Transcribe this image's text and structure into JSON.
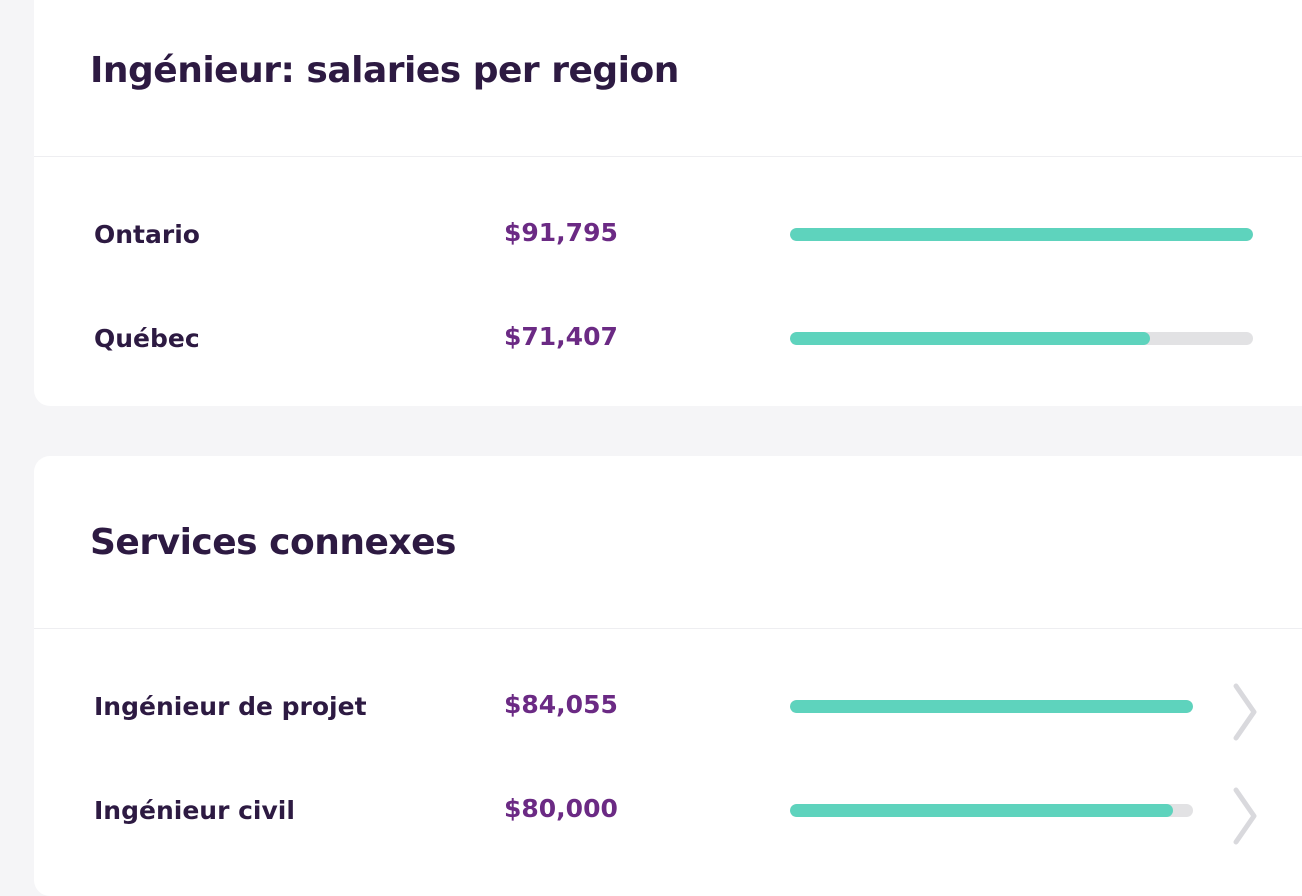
{
  "regions_section": {
    "title": "Ingénieur: salaries per region",
    "rows": [
      {
        "label": "Ontario",
        "value": "$91,795",
        "fill_fraction": 1.0
      },
      {
        "label": "Québec",
        "value": "$71,407",
        "fill_fraction": 0.778
      }
    ]
  },
  "related_section": {
    "title": "Services connexes",
    "rows": [
      {
        "label": "Ingénieur de projet",
        "value": "$84,055",
        "fill_fraction": 1.0
      },
      {
        "label": "Ingénieur civil",
        "value": "$80,000",
        "fill_fraction": 0.95
      }
    ]
  },
  "colors": {
    "bar_fill": "#5ed3bd",
    "bar_track": "#e2e2e4",
    "title_text": "#2d1a42",
    "value_text": "#6b2a84"
  },
  "icons": {
    "row_chevron": "chevron-right-icon"
  }
}
